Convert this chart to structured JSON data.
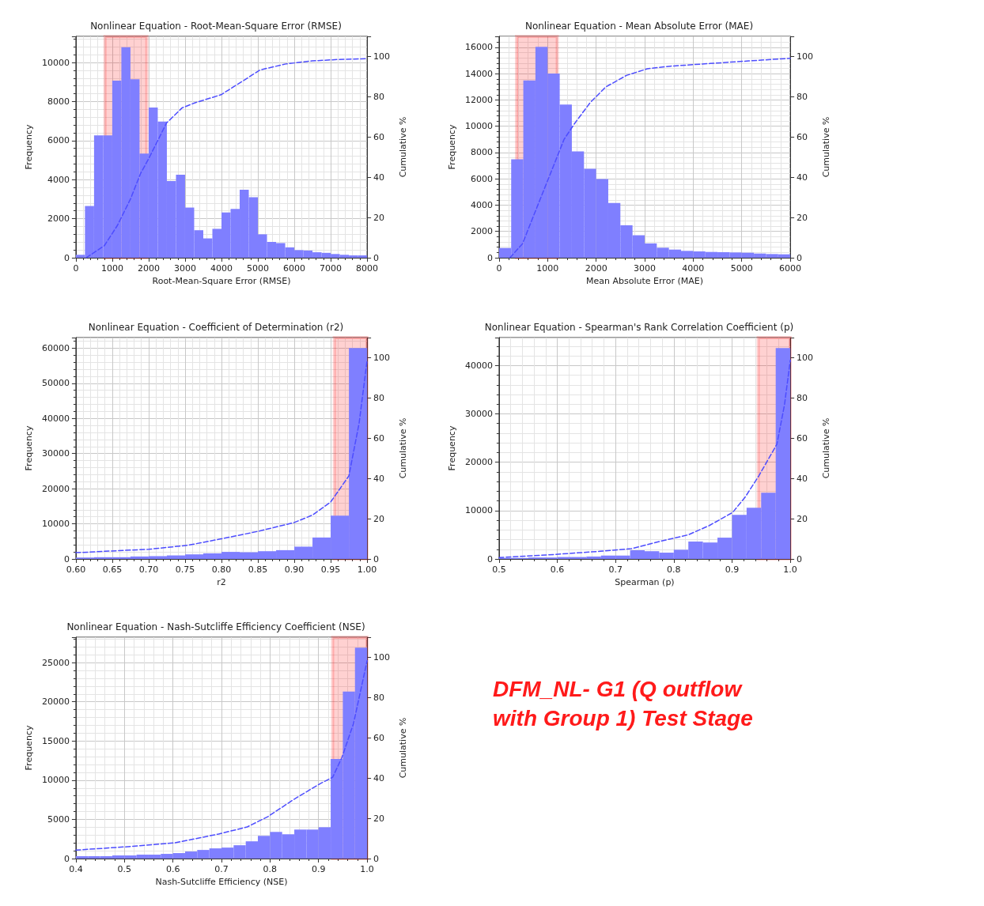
{
  "chart_data": [
    {
      "type": "histogram",
      "title": "Nonlinear Equation - Root-Mean-Square Error (RMSE)",
      "xlabel": "Root-Mean-Square Error (RMSE)",
      "ylabel": "Frequency",
      "y2label": "Cumulative %",
      "xlim": [
        0,
        8000
      ],
      "xticks": [
        0,
        1000,
        2000,
        3000,
        4000,
        5000,
        6000,
        7000,
        8000
      ],
      "ylim": [
        0,
        11340
      ],
      "yticks": [
        0,
        2000,
        4000,
        6000,
        8000,
        10000
      ],
      "y2lim": [
        0,
        110
      ],
      "y2ticks": [
        0,
        20,
        40,
        60,
        80,
        100
      ],
      "grid": true,
      "bands": [
        {
          "axis": "x",
          "from": 800,
          "to": 1950,
          "color": "#ff0000"
        }
      ],
      "series": [
        {
          "type": "histogram",
          "color": "#7f7fff",
          "bins": [
            0,
            250,
            500,
            750,
            1000,
            1250,
            1500,
            1750,
            2000,
            2250,
            2500,
            2750,
            3000,
            3250,
            3500,
            3750,
            4000,
            4250,
            4500,
            4750,
            5000,
            5250,
            5500,
            5750,
            6000,
            6250,
            6500,
            6750,
            7000,
            7250,
            7500,
            7750,
            8000
          ],
          "values": [
            150,
            2650,
            6270,
            6270,
            9070,
            10780,
            9140,
            5340,
            7700,
            6980,
            3930,
            4250,
            2570,
            1410,
            990,
            1480,
            2320,
            2500,
            3480,
            3100,
            1200,
            810,
            750,
            530,
            390,
            370,
            280,
            250,
            190,
            150,
            120,
            120
          ]
        },
        {
          "type": "line",
          "axis": "y2",
          "color": "#4d4dff",
          "line_style": "dashed",
          "x": [
            285,
            783,
            1140,
            1496,
            1781,
            1994,
            2493,
            2920,
            3276,
            3989,
            4558,
            5057,
            5769,
            6481,
            7194,
            8000
          ],
          "values": [
            0,
            6,
            16,
            29,
            42,
            49,
            67,
            74.5,
            77,
            81,
            87.5,
            93.3,
            96.3,
            97.8,
            98.5,
            98.9
          ]
        }
      ]
    },
    {
      "type": "histogram",
      "title": "Nonlinear Equation - Mean Absolute Error (MAE)",
      "xlabel": "Mean Absolute Error (MAE)",
      "ylabel": "Frequency",
      "y2label": "Cumulative %",
      "xlim": [
        0,
        6000
      ],
      "xticks": [
        0,
        1000,
        2000,
        3000,
        4000,
        5000,
        6000
      ],
      "ylim": [
        0,
        16840
      ],
      "yticks": [
        0,
        2000,
        4000,
        6000,
        8000,
        10000,
        12000,
        14000,
        16000
      ],
      "y2lim": [
        0,
        110
      ],
      "y2ticks": [
        0,
        20,
        40,
        60,
        80,
        100
      ],
      "grid": true,
      "bands": [
        {
          "axis": "x",
          "from": 360,
          "to": 1200,
          "color": "#ff0000"
        }
      ],
      "series": [
        {
          "type": "histogram",
          "color": "#7f7fff",
          "bins": [
            0,
            250,
            500,
            750,
            1000,
            1250,
            1500,
            1750,
            2000,
            2250,
            2500,
            2750,
            3000,
            3250,
            3500,
            3750,
            4000,
            4250,
            4500,
            4750,
            5000,
            5250,
            5500,
            5750,
            6000
          ],
          "values": [
            740,
            7490,
            13480,
            16040,
            14020,
            11650,
            8090,
            6760,
            5980,
            4170,
            2470,
            1710,
            1090,
            760,
            620,
            520,
            480,
            440,
            420,
            400,
            380,
            320,
            280,
            260
          ]
        },
        {
          "type": "line",
          "axis": "y2",
          "color": "#4d4dff",
          "line_style": "dashed",
          "x": [
            225,
            482,
            696,
            911,
            1125,
            1339,
            1554,
            1875,
            2196,
            2625,
            3054,
            3536,
            4339,
            5143,
            6000
          ],
          "values": [
            0,
            6.9,
            19.9,
            32.9,
            45.8,
            58.8,
            66.6,
            77,
            84.8,
            90.6,
            93.9,
            95.2,
            96.5,
            97.8,
            99.1
          ]
        }
      ]
    },
    {
      "type": "histogram",
      "title": "Nonlinear Equation - Coefficient of Determination (r2)",
      "xlabel": "r2",
      "ylabel": "Frequency",
      "y2label": "Cumulative %",
      "xlim": [
        0.6,
        1.0
      ],
      "xticks": [
        {
          "value": 0.6,
          "label": "0.60"
        },
        {
          "value": 0.65,
          "label": "0.65"
        },
        {
          "value": 0.7,
          "label": "0.70"
        },
        {
          "value": 0.75,
          "label": "0.75"
        },
        {
          "value": 0.8,
          "label": "0.80"
        },
        {
          "value": 0.85,
          "label": "0.85"
        },
        {
          "value": 0.9,
          "label": "0.90"
        },
        {
          "value": 0.95,
          "label": "0.95"
        },
        {
          "value": 1.0,
          "label": "1.00"
        }
      ],
      "ylim": [
        0,
        63000
      ],
      "yticks": [
        0,
        10000,
        20000,
        30000,
        40000,
        50000,
        60000
      ],
      "y2lim": [
        0,
        110
      ],
      "y2ticks": [
        0,
        20,
        40,
        60,
        80,
        100
      ],
      "grid": true,
      "bands": [
        {
          "axis": "x",
          "from": 0.955,
          "to": 1.0,
          "color": "#ff0000"
        }
      ],
      "series": [
        {
          "type": "histogram",
          "color": "#7f7fff",
          "bins": [
            0.6,
            0.625,
            0.65,
            0.675,
            0.7,
            0.725,
            0.75,
            0.775,
            0.8,
            0.825,
            0.85,
            0.875,
            0.9,
            0.925,
            0.95,
            0.975,
            1.0
          ],
          "values": [
            400,
            500,
            500,
            700,
            800,
            1000,
            1300,
            1600,
            2000,
            1900,
            2200,
            2500,
            3500,
            6100,
            12300,
            60000
          ]
        },
        {
          "type": "line",
          "axis": "y2",
          "color": "#4d4dff",
          "line_style": "dashed",
          "x": [
            0.6,
            0.64,
            0.7,
            0.754,
            0.8,
            0.85,
            0.9,
            0.925,
            0.95,
            0.975,
            0.989,
            1.0
          ],
          "values": [
            3.1,
            3.8,
            4.8,
            6.8,
            10,
            13.7,
            18.1,
            21.8,
            28.3,
            41.3,
            67.4,
            98.7
          ]
        }
      ]
    },
    {
      "type": "histogram",
      "title": "Nonlinear Equation - Spearman's Rank Correlation Coefficient (p)",
      "xlabel": "Spearman (p)",
      "ylabel": "Frequency",
      "y2label": "Cumulative %",
      "xlim": [
        0.5,
        1.0
      ],
      "xticks": [
        {
          "value": 0.5,
          "label": "0.5"
        },
        {
          "value": 0.6,
          "label": "0.6"
        },
        {
          "value": 0.7,
          "label": "0.7"
        },
        {
          "value": 0.8,
          "label": "0.8"
        },
        {
          "value": 0.9,
          "label": "0.9"
        },
        {
          "value": 1.0,
          "label": "1.0"
        }
      ],
      "ylim": [
        0,
        45780
      ],
      "yticks": [
        0,
        10000,
        20000,
        30000,
        40000
      ],
      "y2lim": [
        0,
        110
      ],
      "y2ticks": [
        0,
        20,
        40,
        60,
        80,
        100
      ],
      "grid": true,
      "bands": [
        {
          "axis": "x",
          "from": 0.945,
          "to": 1.0,
          "color": "#ff0000"
        }
      ],
      "series": [
        {
          "type": "histogram",
          "color": "#7f7fff",
          "bins": [
            0.5,
            0.525,
            0.55,
            0.575,
            0.6,
            0.625,
            0.65,
            0.675,
            0.7,
            0.725,
            0.75,
            0.775,
            0.8,
            0.825,
            0.85,
            0.875,
            0.9,
            0.925,
            0.95,
            0.975,
            1.0
          ],
          "values": [
            200,
            200,
            300,
            300,
            400,
            400,
            500,
            700,
            700,
            1800,
            1600,
            1300,
            1900,
            3600,
            3400,
            4400,
            9100,
            10600,
            13700,
            43600
          ]
        },
        {
          "type": "line",
          "axis": "y2",
          "color": "#4d4dff",
          "line_style": "dashed",
          "x": [
            0.5,
            0.594,
            0.674,
            0.727,
            0.776,
            0.825,
            0.861,
            0.901,
            0.923,
            0.946,
            0.977,
            0.99,
            1.0
          ],
          "values": [
            0.7,
            2.2,
            3.8,
            5.1,
            8.7,
            12,
            16.6,
            23.1,
            30.9,
            41.3,
            57,
            76.5,
            98.7
          ]
        }
      ]
    },
    {
      "type": "histogram",
      "title": "Nonlinear Equation - Nash-Sutcliffe Efficiency Coefficient (NSE)",
      "xlabel": "Nash-Sutcliffe Efficiency (NSE)",
      "ylabel": "Frequency",
      "y2label": "Cumulative %",
      "xlim": [
        0.4,
        1.0
      ],
      "xticks": [
        {
          "value": 0.4,
          "label": "0.4"
        },
        {
          "value": 0.5,
          "label": "0.5"
        },
        {
          "value": 0.6,
          "label": "0.6"
        },
        {
          "value": 0.7,
          "label": "0.7"
        },
        {
          "value": 0.8,
          "label": "0.8"
        },
        {
          "value": 0.9,
          "label": "0.9"
        },
        {
          "value": 1.0,
          "label": "1.0"
        }
      ],
      "ylim": [
        0,
        28245
      ],
      "yticks": [
        0,
        5000,
        10000,
        15000,
        20000,
        25000
      ],
      "y2lim": [
        0,
        110
      ],
      "y2ticks": [
        0,
        20,
        40,
        60,
        80,
        100
      ],
      "grid": true,
      "bands": [
        {
          "axis": "x",
          "from": 0.929,
          "to": 1.0,
          "color": "#ff0000"
        }
      ],
      "series": [
        {
          "type": "histogram",
          "color": "#7f7fff",
          "bins": [
            0.4,
            0.425,
            0.45,
            0.475,
            0.5,
            0.525,
            0.55,
            0.575,
            0.6,
            0.625,
            0.65,
            0.675,
            0.7,
            0.725,
            0.75,
            0.775,
            0.8,
            0.825,
            0.85,
            0.875,
            0.9,
            0.925,
            0.95,
            0.975,
            1.0
          ],
          "values": [
            300,
            300,
            300,
            400,
            400,
            500,
            500,
            600,
            700,
            900,
            1100,
            1300,
            1400,
            1700,
            2200,
            2900,
            3400,
            3100,
            3700,
            3700,
            4000,
            12700,
            21300,
            26900
          ]
        },
        {
          "type": "line",
          "axis": "y2",
          "color": "#4d4dff",
          "line_style": "dashed",
          "x": [
            0.4,
            0.513,
            0.604,
            0.694,
            0.753,
            0.796,
            0.849,
            0.903,
            0.929,
            0.948,
            0.972,
            1.0
          ],
          "values": [
            4.2,
            6,
            7.8,
            12.2,
            15.7,
            20.9,
            29.4,
            37.2,
            40.4,
            50.2,
            67.1,
            98.3
          ]
        }
      ]
    },
    {
      "type": "other",
      "annotations": [
        "DFM_NL- G1 (Q outflow with Group 1) Test Stage"
      ]
    }
  ]
}
